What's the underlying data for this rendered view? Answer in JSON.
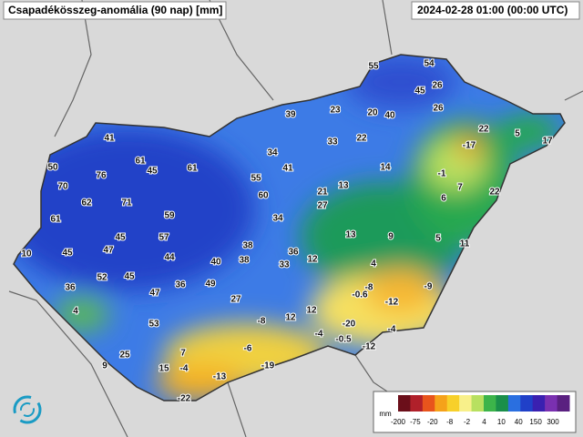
{
  "header": {
    "title": "Csapadékösszeg-anomália (90 nap) [mm]",
    "time": "2024-02-28 01:00 (00:00 UTC)"
  },
  "stations": [
    55,
    54,
    45,
    26,
    26,
    39,
    23,
    20,
    40,
    22,
    5,
    17,
    33,
    22,
    -17,
    41,
    61,
    45,
    61,
    34,
    41,
    14,
    -1,
    50,
    76,
    70,
    55,
    60,
    21,
    13,
    7,
    22,
    62,
    71,
    6,
    27,
    61,
    59,
    34,
    13,
    9,
    5,
    11,
    45,
    57,
    38,
    10,
    45,
    47,
    44,
    40,
    38,
    36,
    12,
    33,
    4,
    52,
    45,
    36,
    49,
    36,
    -8,
    -9,
    47,
    -0.6,
    -12,
    4,
    27,
    12,
    53,
    -8,
    12,
    -20,
    -4,
    -4,
    -0.5,
    -12,
    25,
    7,
    -6,
    9,
    15,
    -4,
    -19,
    -13,
    -22
  ],
  "legend": {
    "unit": "mm",
    "ticks": [
      -200,
      -75,
      -20,
      -8,
      -2,
      4,
      10,
      40,
      150,
      300
    ]
  }
}
